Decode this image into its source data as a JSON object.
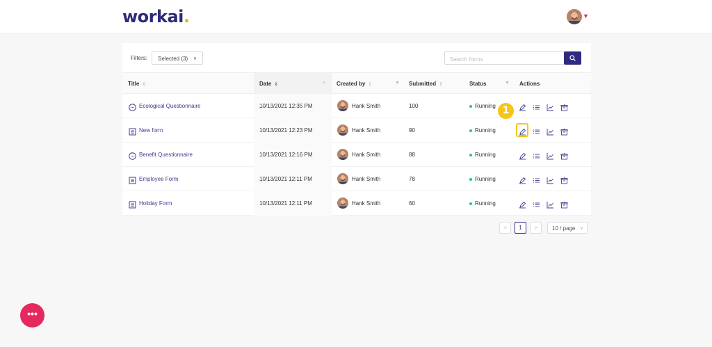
{
  "header": {
    "logo_text": "workai",
    "logo_dot": "."
  },
  "filters": {
    "label": "Filters:",
    "selected": "Selected (3)"
  },
  "search": {
    "placeholder": "Search forms"
  },
  "table": {
    "columns": {
      "title": "Title",
      "date": "Date",
      "created_by": "Created by",
      "submitted": "Submitted",
      "status": "Status",
      "actions": "Actions"
    },
    "rows": [
      {
        "icon": "chat-bubble-icon",
        "title": "Ecological Questionnaire",
        "date": "10/13/2021 12:35 PM",
        "creator": "Hank Smith",
        "submitted": "100",
        "status": "Running"
      },
      {
        "icon": "list-form-icon",
        "title": "New form",
        "date": "10/13/2021 12:23 PM",
        "creator": "Hank Smith",
        "submitted": "90",
        "status": "Running"
      },
      {
        "icon": "chat-bubble-icon",
        "title": "Benefit Questionnaire",
        "date": "10/13/2021 12:16 PM",
        "creator": "Hank Smith",
        "submitted": "88",
        "status": "Running"
      },
      {
        "icon": "list-form-icon",
        "title": "Employee Form",
        "date": "10/13/2021 12:11 PM",
        "creator": "Hank Smith",
        "submitted": "78",
        "status": "Running"
      },
      {
        "icon": "list-form-icon",
        "title": "Holiday Form",
        "date": "10/13/2021 12:11 PM",
        "creator": "Hank Smith",
        "submitted": "60",
        "status": "Running"
      }
    ]
  },
  "callout": {
    "step": "1"
  },
  "pagination": {
    "prev": "<",
    "current": "1",
    "next": ">",
    "page_size": "10 / page"
  },
  "fab": {
    "label": "•••"
  },
  "colors": {
    "brand": "#2e2a82",
    "accent": "#f2b300",
    "status_running": "#22c3a4",
    "fab": "#e5295f",
    "highlight": "#f5c518"
  }
}
